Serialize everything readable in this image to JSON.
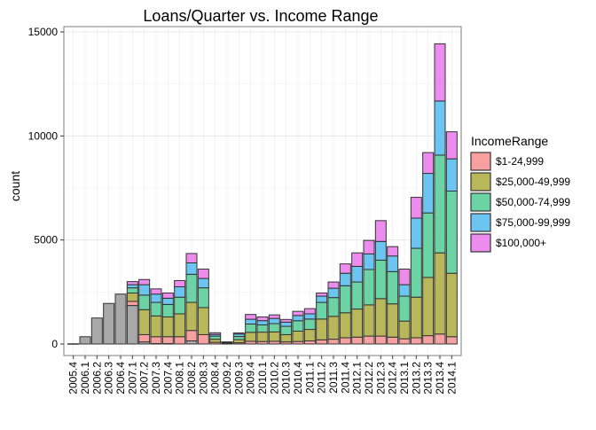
{
  "chart_data": {
    "type": "bar",
    "stacked": true,
    "title": "Loans/Quarter vs. Income Range",
    "xlabel": "",
    "ylabel": "count",
    "ylim": [
      0,
      15000
    ],
    "yticks": [
      0,
      5000,
      10000,
      15000
    ],
    "grid": true,
    "legend_position": "right",
    "legend_title": "IncomeRange",
    "categories": [
      "2005.4",
      "2006.1",
      "2006.2",
      "2006.3",
      "2006.4",
      "2007.1",
      "2007.2",
      "2007.3",
      "2007.4",
      "2008.1",
      "2008.2",
      "2008.3",
      "2008.4",
      "2009.2",
      "2009.3",
      "2009.4",
      "2010.1",
      "2010.2",
      "2010.3",
      "2010.4",
      "2011.1",
      "2011.2",
      "2011.3",
      "2011.4",
      "2012.1",
      "2012.2",
      "2012.3",
      "2012.4",
      "2013.1",
      "2013.2",
      "2013.3",
      "2013.4",
      "2014.1"
    ],
    "series": [
      {
        "name": "$1-24,999",
        "color": "#f8a0a0",
        "values": [
          0,
          0,
          0,
          0,
          0,
          200,
          350,
          330,
          330,
          350,
          500,
          450,
          80,
          20,
          60,
          130,
          120,
          130,
          100,
          120,
          150,
          200,
          230,
          300,
          330,
          380,
          380,
          330,
          250,
          300,
          400,
          480,
          350
        ]
      },
      {
        "name": "$25,000-49,999",
        "color": "#b8b85a",
        "values": [
          0,
          0,
          0,
          0,
          0,
          400,
          1200,
          1000,
          950,
          1100,
          1350,
          1300,
          150,
          30,
          150,
          430,
          450,
          450,
          350,
          500,
          550,
          1000,
          1100,
          1200,
          1350,
          1500,
          1800,
          1600,
          850,
          1950,
          2800,
          3900,
          3050
        ]
      },
      {
        "name": "$50,000-74,999",
        "color": "#6cd4a4",
        "values": [
          0,
          0,
          0,
          0,
          0,
          250,
          700,
          650,
          600,
          800,
          1350,
          950,
          150,
          30,
          150,
          400,
          350,
          400,
          400,
          500,
          500,
          800,
          900,
          1300,
          1300,
          1700,
          1850,
          1550,
          1200,
          2350,
          3100,
          4700,
          3950
        ]
      },
      {
        "name": "$75,000-99,999",
        "color": "#6cc4f0",
        "values": [
          0,
          0,
          0,
          0,
          0,
          150,
          500,
          400,
          300,
          500,
          550,
          450,
          80,
          15,
          120,
          230,
          200,
          250,
          200,
          250,
          250,
          300,
          450,
          600,
          750,
          750,
          900,
          750,
          550,
          1450,
          1900,
          2600,
          1550
        ]
      },
      {
        "name": "$100,000+",
        "color": "#ec8cec",
        "values": [
          0,
          0,
          0,
          0,
          0,
          150,
          250,
          250,
          250,
          300,
          450,
          450,
          80,
          5,
          50,
          230,
          180,
          170,
          130,
          200,
          250,
          150,
          300,
          450,
          650,
          650,
          1000,
          450,
          750,
          1000,
          1000,
          2750,
          1300
        ]
      },
      {
        "name": "",
        "color": "#a8a8a8",
        "values": [
          10,
          350,
          1250,
          1950,
          2400,
          1850,
          100,
          20,
          20,
          0,
          150,
          0,
          0,
          0,
          0,
          0,
          0,
          0,
          0,
          0,
          0,
          0,
          0,
          0,
          0,
          0,
          0,
          0,
          0,
          0,
          0,
          0,
          0
        ]
      }
    ]
  }
}
